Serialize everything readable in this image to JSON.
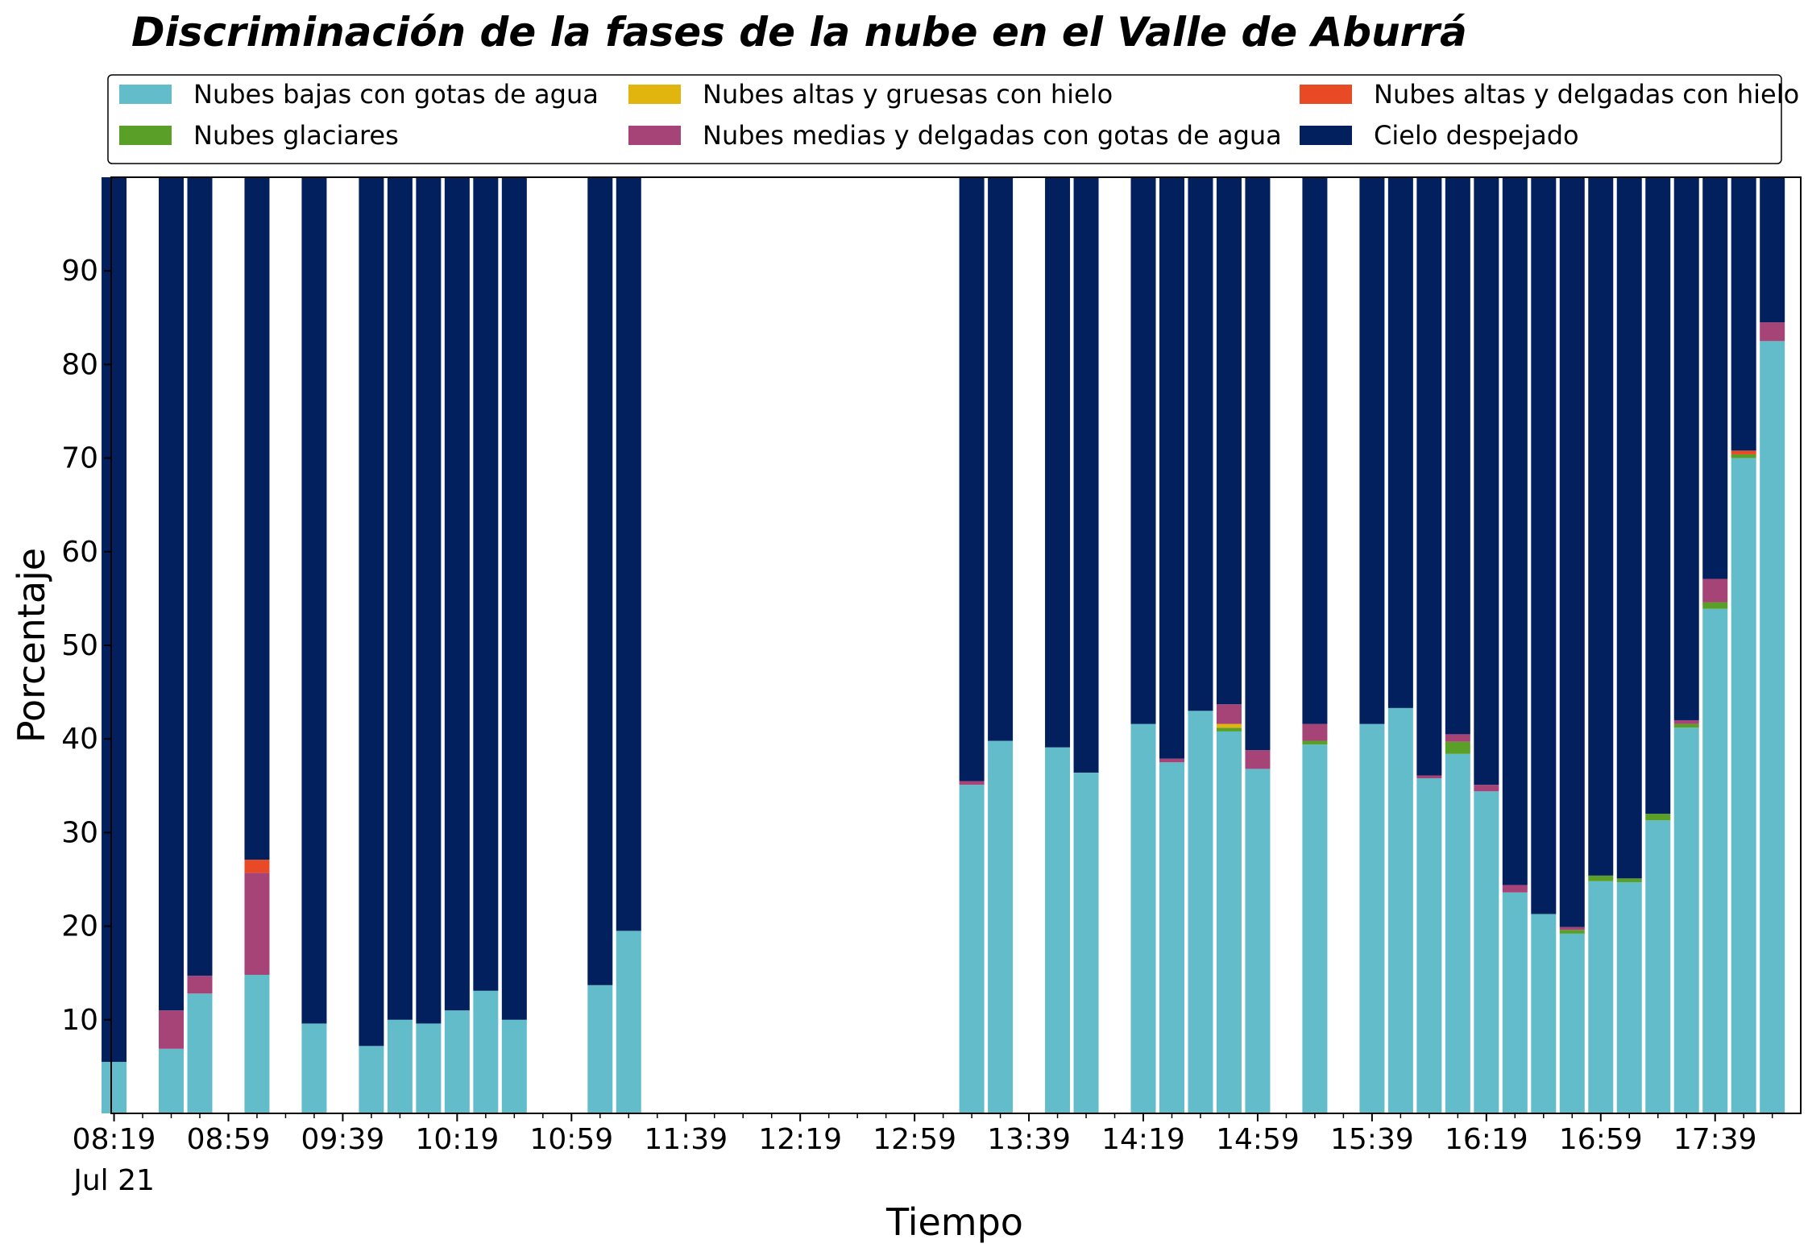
{
  "chart_data": {
    "type": "bar",
    "stacked": true,
    "title": "Discriminación de la fases de la nube en el Valle de Aburrá",
    "xlabel": "Tiempo",
    "ylabel": "Porcentaje",
    "ylim": [
      0,
      100
    ],
    "yticks": [
      10,
      20,
      30,
      40,
      50,
      60,
      70,
      80,
      90
    ],
    "grid": false,
    "legend_position": "top",
    "xtick_labels": [
      "08:19",
      "08:59",
      "09:39",
      "10:19",
      "10:59",
      "11:39",
      "12:19",
      "12:59",
      "13:39",
      "14:19",
      "14:59",
      "15:39",
      "16:19",
      "16:59",
      "17:39"
    ],
    "xtick_sublabel": "Jul 21",
    "x_start": "08:19",
    "x_end": "17:59",
    "time_step_minutes": 10,
    "legend": [
      {
        "name": "Nubes bajas con gotas de agua",
        "color": "#63BCC9"
      },
      {
        "name": "Nubes altas y gruesas con hielo",
        "color": "#E1B40E"
      },
      {
        "name": "Nubes altas y delgadas con hielo",
        "color": "#E84A26"
      },
      {
        "name": "Nubes glaciares",
        "color": "#5A9F28"
      },
      {
        "name": "Nubes medias y delgadas con gotas de agua",
        "color": "#A64478"
      },
      {
        "name": "Cielo despejado",
        "color": "#021F5E"
      }
    ],
    "stack_order": [
      "Nubes bajas con gotas de agua",
      "Nubes glaciares",
      "Nubes altas y gruesas con hielo",
      "Nubes medias y delgadas con gotas de agua",
      "Nubes altas y delgadas con hielo",
      "Cielo despejado"
    ],
    "bars": [
      {
        "time": "08:19",
        "values": [
          5.5,
          0,
          0,
          0,
          0,
          94.5
        ]
      },
      {
        "time": "08:39",
        "values": [
          6.9,
          0,
          0,
          4.1,
          0,
          89.0
        ]
      },
      {
        "time": "08:49",
        "values": [
          12.8,
          0,
          0,
          1.9,
          0,
          85.3
        ]
      },
      {
        "time": "09:09",
        "values": [
          14.8,
          0,
          0,
          10.9,
          1.4,
          72.9
        ]
      },
      {
        "time": "09:29",
        "values": [
          9.6,
          0,
          0,
          0,
          0,
          90.4
        ]
      },
      {
        "time": "09:49",
        "values": [
          7.2,
          0,
          0,
          0,
          0,
          92.8
        ]
      },
      {
        "time": "09:59",
        "values": [
          10.0,
          0,
          0,
          0,
          0,
          90.0
        ]
      },
      {
        "time": "10:09",
        "values": [
          9.6,
          0,
          0,
          0,
          0,
          90.4
        ]
      },
      {
        "time": "10:19",
        "values": [
          11.0,
          0,
          0,
          0,
          0,
          89.0
        ]
      },
      {
        "time": "10:29",
        "values": [
          13.1,
          0,
          0,
          0,
          0,
          86.9
        ]
      },
      {
        "time": "10:39",
        "values": [
          10.0,
          0,
          0,
          0,
          0,
          90.0
        ]
      },
      {
        "time": "11:09",
        "values": [
          13.7,
          0,
          0,
          0,
          0,
          86.3
        ]
      },
      {
        "time": "11:19",
        "values": [
          19.5,
          0,
          0,
          0,
          0,
          80.5
        ]
      },
      {
        "time": "13:19",
        "values": [
          35.1,
          0,
          0,
          0.4,
          0,
          64.5
        ]
      },
      {
        "time": "13:29",
        "values": [
          39.8,
          0,
          0,
          0,
          0,
          60.2
        ]
      },
      {
        "time": "13:49",
        "values": [
          39.1,
          0,
          0,
          0,
          0,
          60.9
        ]
      },
      {
        "time": "13:59",
        "values": [
          36.4,
          0,
          0,
          0,
          0,
          63.6
        ]
      },
      {
        "time": "14:19",
        "values": [
          41.6,
          0,
          0,
          0,
          0,
          58.4
        ]
      },
      {
        "time": "14:29",
        "values": [
          37.5,
          0,
          0,
          0.4,
          0,
          62.1
        ]
      },
      {
        "time": "14:39",
        "values": [
          43.0,
          0,
          0,
          0,
          0,
          57.0
        ]
      },
      {
        "time": "14:49",
        "values": [
          40.8,
          0.4,
          0.4,
          2.1,
          0,
          56.3
        ]
      },
      {
        "time": "14:59",
        "values": [
          36.8,
          0,
          0,
          2.0,
          0,
          61.2
        ]
      },
      {
        "time": "15:19",
        "values": [
          39.4,
          0.4,
          0,
          1.8,
          0,
          58.4
        ]
      },
      {
        "time": "15:39",
        "values": [
          41.6,
          0,
          0,
          0,
          0,
          58.4
        ]
      },
      {
        "time": "15:49",
        "values": [
          43.3,
          0,
          0,
          0,
          0,
          56.7
        ]
      },
      {
        "time": "15:59",
        "values": [
          35.8,
          0,
          0,
          0.3,
          0,
          63.9
        ]
      },
      {
        "time": "16:09",
        "values": [
          38.4,
          1.3,
          0,
          0.8,
          0,
          59.5
        ]
      },
      {
        "time": "16:19",
        "values": [
          34.4,
          0,
          0,
          0.7,
          0,
          64.9
        ]
      },
      {
        "time": "16:29",
        "values": [
          23.6,
          0,
          0,
          0.8,
          0,
          75.6
        ]
      },
      {
        "time": "16:39",
        "values": [
          21.3,
          0,
          0,
          0,
          0,
          78.7
        ]
      },
      {
        "time": "16:49",
        "values": [
          19.2,
          0.4,
          0,
          0.3,
          0,
          80.1
        ]
      },
      {
        "time": "16:59",
        "values": [
          24.8,
          0.6,
          0,
          0,
          0,
          74.6
        ]
      },
      {
        "time": "17:09",
        "values": [
          24.7,
          0.4,
          0,
          0,
          0,
          74.9
        ]
      },
      {
        "time": "17:19",
        "values": [
          31.3,
          0.7,
          0,
          0,
          0,
          68.0
        ]
      },
      {
        "time": "17:29",
        "values": [
          41.2,
          0.4,
          0,
          0.4,
          0,
          58.0
        ]
      },
      {
        "time": "17:39",
        "values": [
          53.9,
          0.7,
          0,
          2.5,
          0,
          42.9
        ]
      },
      {
        "time": "17:49",
        "values": [
          70.0,
          0.4,
          0,
          0,
          0.4,
          29.2
        ]
      },
      {
        "time": "17:59",
        "values": [
          82.5,
          0,
          0,
          2.0,
          0,
          15.5
        ]
      }
    ]
  }
}
